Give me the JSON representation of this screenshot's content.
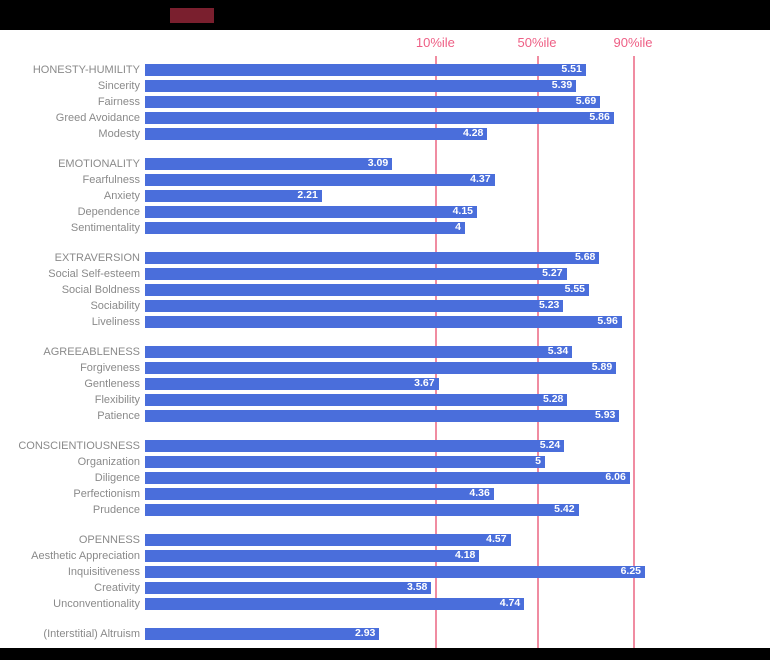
{
  "page": {
    "background": "#000000",
    "chart_background": "#ffffff",
    "top_accent_color": "#7a1f2e"
  },
  "chart_data": {
    "type": "bar",
    "orientation": "horizontal",
    "title": "",
    "xlabel": "",
    "ylabel": "",
    "xlim": [
      0,
      7.8
    ],
    "grid": false,
    "legend_position": "none",
    "bar_color": "#4a6edb",
    "percentile_line_color": "#f08ca1",
    "percentile_label_color": "#ee5f85",
    "label_color": "#8a8a8a",
    "value_label_color": "#ffffff",
    "percentile_lines": [
      {
        "label": "10%ile",
        "value": 3.63
      },
      {
        "label": "50%ile",
        "value": 4.9
      },
      {
        "label": "90%ile",
        "value": 6.1
      }
    ],
    "groups": [
      {
        "name": "HONESTY-HUMILITY",
        "rows": [
          {
            "label": "HONESTY-HUMILITY",
            "value": 5.51,
            "display": "5.51",
            "is_header": true
          },
          {
            "label": "Sincerity",
            "value": 5.39,
            "display": "5.39"
          },
          {
            "label": "Fairness",
            "value": 5.69,
            "display": "5.69"
          },
          {
            "label": "Greed Avoidance",
            "value": 5.86,
            "display": "5.86"
          },
          {
            "label": "Modesty",
            "value": 4.28,
            "display": "4.28"
          }
        ]
      },
      {
        "name": "EMOTIONALITY",
        "rows": [
          {
            "label": "EMOTIONALITY",
            "value": 3.09,
            "display": "3.09",
            "is_header": true
          },
          {
            "label": "Fearfulness",
            "value": 4.37,
            "display": "4.37"
          },
          {
            "label": "Anxiety",
            "value": 2.21,
            "display": "2.21"
          },
          {
            "label": "Dependence",
            "value": 4.15,
            "display": "4.15"
          },
          {
            "label": "Sentimentality",
            "value": 4,
            "display": "4"
          }
        ]
      },
      {
        "name": "EXTRAVERSION",
        "rows": [
          {
            "label": "EXTRAVERSION",
            "value": 5.68,
            "display": "5.68",
            "is_header": true
          },
          {
            "label": "Social Self-esteem",
            "value": 5.27,
            "display": "5.27"
          },
          {
            "label": "Social Boldness",
            "value": 5.55,
            "display": "5.55"
          },
          {
            "label": "Sociability",
            "value": 5.23,
            "display": "5.23"
          },
          {
            "label": "Liveliness",
            "value": 5.96,
            "display": "5.96"
          }
        ]
      },
      {
        "name": "AGREEABLENESS",
        "rows": [
          {
            "label": "AGREEABLENESS",
            "value": 5.34,
            "display": "5.34",
            "is_header": true
          },
          {
            "label": "Forgiveness",
            "value": 5.89,
            "display": "5.89"
          },
          {
            "label": "Gentleness",
            "value": 3.67,
            "display": "3.67"
          },
          {
            "label": "Flexibility",
            "value": 5.28,
            "display": "5.28"
          },
          {
            "label": "Patience",
            "value": 5.93,
            "display": "5.93"
          }
        ]
      },
      {
        "name": "CONSCIENTIOUSNESS",
        "rows": [
          {
            "label": "CONSCIENTIOUSNESS",
            "value": 5.24,
            "display": "5.24",
            "is_header": true
          },
          {
            "label": "Organization",
            "value": 5,
            "display": "5"
          },
          {
            "label": "Diligence",
            "value": 6.06,
            "display": "6.06"
          },
          {
            "label": "Perfectionism",
            "value": 4.36,
            "display": "4.36"
          },
          {
            "label": "Prudence",
            "value": 5.42,
            "display": "5.42"
          }
        ]
      },
      {
        "name": "OPENNESS",
        "rows": [
          {
            "label": "OPENNESS",
            "value": 4.57,
            "display": "4.57",
            "is_header": true
          },
          {
            "label": "Aesthetic Appreciation",
            "value": 4.18,
            "display": "4.18"
          },
          {
            "label": "Inquisitiveness",
            "value": 6.25,
            "display": "6.25"
          },
          {
            "label": "Creativity",
            "value": 3.58,
            "display": "3.58"
          },
          {
            "label": "Unconventionality",
            "value": 4.74,
            "display": "4.74"
          }
        ]
      },
      {
        "name": "(Interstitial) Altruism",
        "rows": [
          {
            "label": "(Interstitial) Altruism",
            "value": 2.93,
            "display": "2.93"
          }
        ]
      }
    ]
  }
}
